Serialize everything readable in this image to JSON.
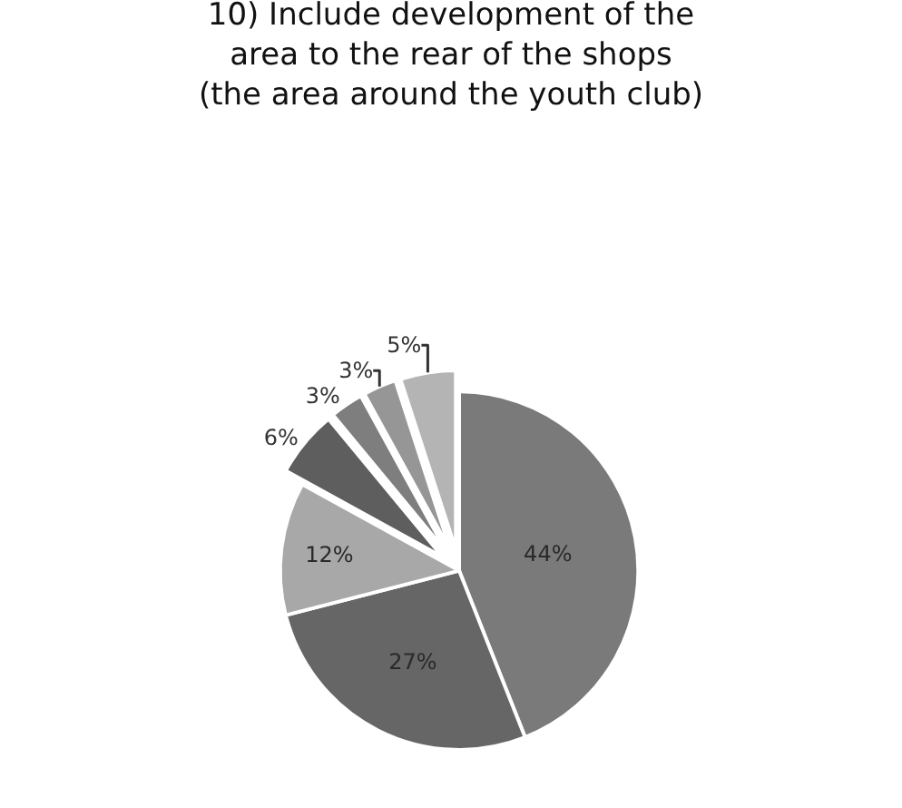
{
  "chart_data": {
    "type": "pie",
    "title": "10) Include development of the\narea to the rear of the shops\n(the area around the youth club)",
    "categories": [
      null,
      null,
      null,
      null,
      null,
      null,
      null
    ],
    "values": [
      44,
      27,
      12,
      6,
      3,
      3,
      5
    ],
    "value_labels": [
      "44%",
      "27%",
      "12%",
      "6%",
      "3%",
      "3%",
      "5%"
    ],
    "colors": [
      "#7a7a7a",
      "#666666",
      "#a8a8a8",
      "#5e5e5e",
      "#7e7e7e",
      "#969696",
      "#b4b4b4"
    ],
    "legend": false
  }
}
